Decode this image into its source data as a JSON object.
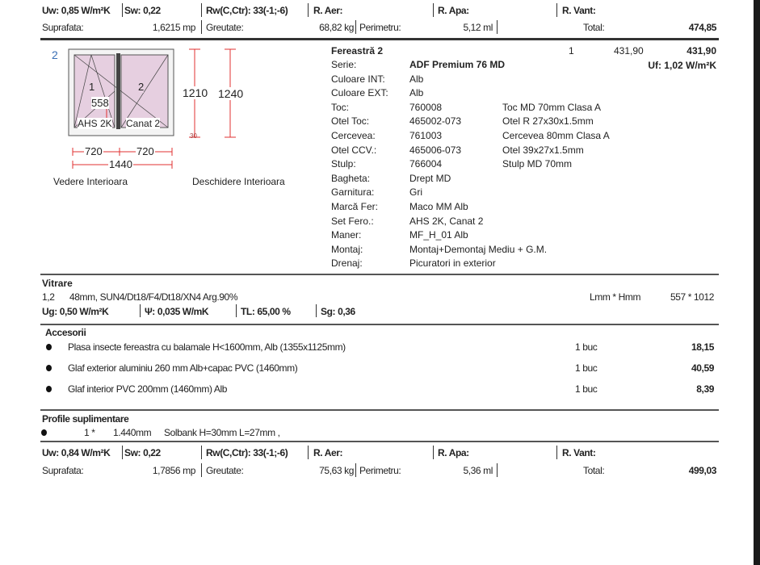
{
  "summary1": {
    "uw": "Uw: 0,85 W/m²K",
    "sw": "Sw: 0,22",
    "rw": "Rw(C,Ctr): 33(-1;-6)",
    "aer": "R. Aer:",
    "apa": "R. Apa:",
    "vant": "R. Vant:",
    "suprafata_label": "Suprafata:",
    "suprafata": "1,6215  mp",
    "greutate_label": "Greutate:",
    "greutate": "68,82  kg",
    "perimetru_label": "Perimetru:",
    "perimetru": "5,12 ml",
    "total_label": "Total:",
    "total": "474,85"
  },
  "drawing": {
    "index": "2",
    "sash1": "1",
    "sash2": "2",
    "height_mark": "558",
    "hw1": "AHS 2K",
    "hw2": "Canat 2",
    "w1": "720",
    "w2": "720",
    "w_total": "1440",
    "h1": "1210",
    "h2": "1240",
    "small": "30",
    "view_label": "Vedere Interioara",
    "opening_label": "Deschidere Interioara",
    "glass_color": "#e6cfe0",
    "dim_color": "#e03030"
  },
  "item": {
    "title": "Fereastră 2",
    "qty": "1",
    "unit_price": "431,90",
    "price": "431,90",
    "uf": "Uf:  1,02 W/m²K",
    "specs": [
      {
        "label": "Serie:",
        "value": "ADF Premium 76  MD",
        "desc": ""
      },
      {
        "label": "Culoare INT:",
        "value": "Alb",
        "desc": ""
      },
      {
        "label": "Culoare EXT:",
        "value": "Alb",
        "desc": ""
      },
      {
        "label": "Toc:",
        "value": "760008",
        "desc": "Toc MD 70mm Clasa A"
      },
      {
        "label": "Otel Toc:",
        "value": "465002-073",
        "desc": "Otel R 27x30x1.5mm"
      },
      {
        "label": "Cercevea:",
        "value": "761003",
        "desc": "Cercevea 80mm Clasa A"
      },
      {
        "label": "Otel CCV.:",
        "value": "465006-073",
        "desc": "Otel 39x27x1.5mm"
      },
      {
        "label": "Stulp:",
        "value": "766004",
        "desc": "Stulp MD 70mm"
      },
      {
        "label": "Bagheta:",
        "value": "Drept MD",
        "desc": ""
      },
      {
        "label": "Garnitura:",
        "value": "Gri",
        "desc": ""
      },
      {
        "label": "Marcă Fer:",
        "value": "Maco MM Alb",
        "desc": ""
      },
      {
        "label": "Set Fero.:",
        "value": "AHS 2K, Canat 2",
        "desc": ""
      },
      {
        "label": "Maner:",
        "value": "MF_H_01 Alb",
        "desc": ""
      },
      {
        "label": "Montaj:",
        "value": "Montaj+Demontaj Mediu + G.M.",
        "desc": ""
      },
      {
        "label": "Drenaj:",
        "value": "Picuratori in exterior",
        "desc": ""
      }
    ]
  },
  "vitrare": {
    "title": "Vitrare",
    "pos": "1,2",
    "desc": "48mm, SUN4/Dt18/F4/Dt18/XN4 Arg.90%",
    "dims_label": "Lmm * Hmm",
    "dims": "557  *  1012",
    "ug": "Ug:  0,50 W/m²K",
    "psi": "Ψ:  0,035 W/mK",
    "tl": "TL: 65,00 %",
    "sg": "Sg: 0,36"
  },
  "accesorii": {
    "title": "Accesorii",
    "items": [
      {
        "name": "Plasa insecte fereastra cu balamale H<1600mm, Alb (1355x1125mm)",
        "qty": "1  buc",
        "price": "18,15"
      },
      {
        "name": "Glaf exterior aluminiu 260 mm Alb+capac PVC (1460mm)",
        "qty": "1  buc",
        "price": "40,59"
      },
      {
        "name": "Glaf interior PVC 200mm (1460mm)  Alb",
        "qty": "1  buc",
        "price": "8,39"
      }
    ]
  },
  "profile": {
    "title": "Profile suplimentare",
    "qty": "1 *",
    "length": "1.440mm",
    "desc": "Solbank H=30mm L=27mm ,"
  },
  "summary2": {
    "uw": "Uw: 0,84 W/m²K",
    "sw": "Sw: 0,22",
    "rw": "Rw(C,Ctr): 33(-1;-6)",
    "aer": "R. Aer:",
    "apa": "R. Apa:",
    "vant": "R. Vant:",
    "suprafata_label": "Suprafata:",
    "suprafata": "1,7856  mp",
    "greutate_label": "Greutate:",
    "greutate": "75,63  kg",
    "perimetru_label": "Perimetru:",
    "perimetru": "5,36 ml",
    "total_label": "Total:",
    "total": "499,03"
  }
}
